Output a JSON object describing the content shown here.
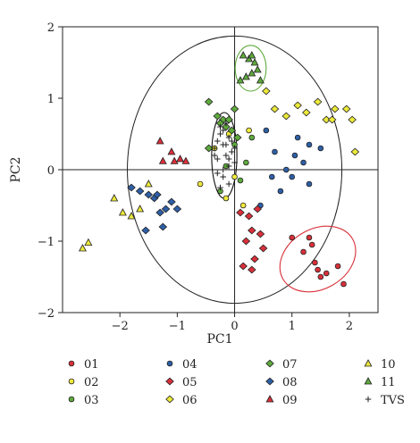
{
  "chart_data": {
    "type": "scatter",
    "title": "",
    "xlabel": "PC1",
    "ylabel": "PC2",
    "xlim": [
      -3,
      2.5
    ],
    "ylim": [
      -2,
      2
    ],
    "xticks": [
      -2,
      -1,
      0,
      1,
      2
    ],
    "yticks": [
      -2,
      -1,
      0,
      1,
      2
    ],
    "xtick_labels": [
      "−2",
      "−1",
      "0",
      "1",
      "2"
    ],
    "ytick_labels": [
      "−2",
      "−1",
      "0",
      "1",
      "2"
    ],
    "reference_lines": {
      "x": 0,
      "y": 0
    },
    "circle": {
      "cx": 0,
      "cy": 0,
      "r": 1.87
    },
    "legend_position": "bottom",
    "series": [
      {
        "name": "01",
        "marker": "circle",
        "color": "#d9303a",
        "x": [
          1.0,
          1.3,
          1.35,
          1.4,
          1.45,
          1.5,
          1.6,
          1.8,
          1.9,
          1.2
        ],
        "y": [
          -0.95,
          -0.95,
          -1.05,
          -1.3,
          -1.4,
          -1.5,
          -1.45,
          -1.35,
          -1.6,
          -1.15
        ]
      },
      {
        "name": "02",
        "marker": "circle",
        "color": "#f0ea3c",
        "x": [
          -0.6,
          -0.15,
          0.0,
          0.15,
          0.25,
          -0.35,
          -0.1
        ],
        "y": [
          -0.2,
          -0.4,
          -0.1,
          -0.5,
          0.55,
          0.3,
          0.5
        ]
      },
      {
        "name": "03",
        "marker": "circle",
        "color": "#5eaa3c",
        "x": [
          -0.15,
          -0.05,
          0.1,
          0.3,
          -0.25,
          0.0,
          0.2
        ],
        "y": [
          0.05,
          0.55,
          -0.15,
          0.45,
          -0.3,
          0.35,
          0.1
        ]
      },
      {
        "name": "04",
        "marker": "circle",
        "color": "#2e5fa6",
        "x": [
          0.55,
          0.7,
          0.8,
          0.9,
          1.0,
          1.05,
          1.2,
          1.3,
          1.5,
          1.3,
          0.45,
          0.65,
          1.1
        ],
        "y": [
          0.55,
          0.25,
          -0.3,
          0.0,
          -0.1,
          0.2,
          0.1,
          -0.2,
          0.3,
          0.35,
          -0.5,
          -0.1,
          0.45
        ]
      },
      {
        "name": "05",
        "marker": "diamond",
        "color": "#d9303a",
        "x": [
          0.1,
          0.25,
          0.3,
          0.45,
          0.5,
          0.35,
          0.15,
          0.3,
          0.2,
          0.4
        ],
        "y": [
          -0.6,
          -0.65,
          -0.85,
          -0.9,
          -1.1,
          -1.25,
          -1.35,
          -1.4,
          -1.0,
          -0.55
        ]
      },
      {
        "name": "06",
        "marker": "diamond",
        "color": "#ecea3a",
        "x": [
          0.55,
          0.7,
          0.9,
          1.1,
          1.25,
          1.45,
          1.6,
          1.7,
          1.75,
          1.95,
          2.05,
          2.1
        ],
        "y": [
          1.1,
          0.85,
          0.75,
          0.9,
          0.8,
          0.95,
          0.7,
          0.7,
          0.85,
          0.85,
          0.7,
          0.25
        ]
      },
      {
        "name": "07",
        "marker": "diamond",
        "color": "#5eaa3c",
        "x": [
          -0.45,
          -0.3,
          -0.2,
          -0.15,
          -0.05,
          0.05,
          -0.25,
          -0.45,
          -0.1,
          0.0
        ],
        "y": [
          0.95,
          0.75,
          0.7,
          0.6,
          0.55,
          0.45,
          0.65,
          0.3,
          0.7,
          0.85
        ]
      },
      {
        "name": "08",
        "marker": "diamond",
        "color": "#2e5fa6",
        "x": [
          -1.65,
          -1.5,
          -1.4,
          -1.3,
          -1.2,
          -1.1,
          -1.0,
          -1.35,
          -1.55,
          -1.8,
          -1.25
        ],
        "y": [
          -0.3,
          -0.35,
          -0.4,
          -0.6,
          -0.55,
          -0.45,
          -0.55,
          -0.35,
          -0.85,
          -0.25,
          -0.8
        ]
      },
      {
        "name": "09",
        "marker": "triangle",
        "color": "#d9303a",
        "x": [
          -1.3,
          -1.25,
          -1.1,
          -1.05,
          -0.95,
          -0.85
        ],
        "y": [
          0.4,
          0.12,
          0.25,
          0.12,
          0.15,
          0.12
        ]
      },
      {
        "name": "10",
        "marker": "triangle",
        "color": "#ecea3a",
        "x": [
          -2.65,
          -2.55,
          -2.1,
          -1.95,
          -1.8,
          -1.65,
          -1.5
        ],
        "y": [
          -1.1,
          -1.02,
          -0.4,
          -0.6,
          -0.65,
          -0.55,
          -0.2
        ]
      },
      {
        "name": "11",
        "marker": "triangle",
        "color": "#5eaa3c",
        "x": [
          0.1,
          0.2,
          0.25,
          0.3,
          0.35,
          0.4,
          0.45,
          0.3,
          0.15
        ],
        "y": [
          1.25,
          1.3,
          1.55,
          1.6,
          1.5,
          1.4,
          1.25,
          1.35,
          1.6
        ]
      },
      {
        "name": "TVS",
        "marker": "plus",
        "color": "#222222",
        "x": [
          -0.35,
          -0.3,
          -0.25,
          -0.2,
          -0.15,
          -0.1,
          -0.05,
          0.0,
          -0.3,
          -0.2,
          -0.1,
          -0.25,
          -0.15,
          -0.05,
          -0.35,
          -0.2,
          -0.1,
          -0.3,
          -0.15,
          0.0,
          -0.25,
          -0.1,
          -0.2
        ],
        "y": [
          0.3,
          0.15,
          0.5,
          0.35,
          0.2,
          0.45,
          0.25,
          0.1,
          -0.05,
          -0.1,
          0.05,
          0.6,
          0.65,
          0.4,
          0.2,
          0.0,
          -0.2,
          0.4,
          0.35,
          0.3,
          -0.25,
          0.15,
          0.55
        ]
      }
    ],
    "annotations": [
      {
        "shape": "ellipse",
        "color": "#d9303a",
        "cx": 1.45,
        "cy": -1.25,
        "rx": 0.7,
        "ry": 0.42,
        "angle_deg": -30
      },
      {
        "shape": "ellipse",
        "color": "#5eaa3c",
        "cx": 0.28,
        "cy": 1.42,
        "rx": 0.27,
        "ry": 0.32,
        "angle_deg": 0
      },
      {
        "shape": "ellipse",
        "color": "#111111",
        "cx": -0.18,
        "cy": 0.2,
        "rx": 0.22,
        "ry": 0.6,
        "angle_deg": 0
      }
    ]
  }
}
